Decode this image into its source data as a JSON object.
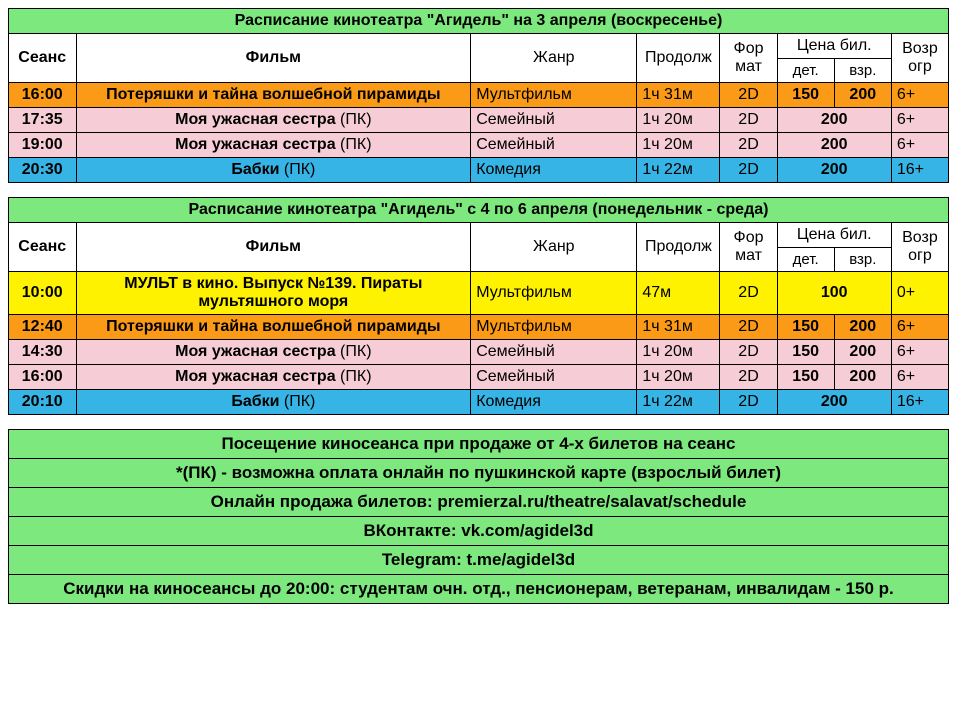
{
  "colors": {
    "green": "#7de87d",
    "orange": "#fb9a17",
    "pink": "#f6cdd6",
    "blue": "#36b4e5",
    "yellow": "#fff200",
    "white": "#ffffff"
  },
  "headers": {
    "time": "Сеанс",
    "film": "Фильм",
    "genre": "Жанр",
    "duration": "Продолж",
    "format": "Фор мат",
    "price": "Цена бил.",
    "price_child": "дет.",
    "price_adult": "взр.",
    "age": "Возр огр"
  },
  "tables": [
    {
      "title": "Расписание кинотеатра \"Агидель\" на 3 апреля (воскресенье)",
      "rows": [
        {
          "time": "16:00",
          "film": "Потеряшки и тайна волшебной пирамиды",
          "suffix": "",
          "genre": "Мультфильм",
          "duration": "1ч 31м",
          "format": "2D",
          "price_child": "150",
          "price_adult": "200",
          "age": "6+",
          "bg": "orange"
        },
        {
          "time": "17:35",
          "film": "Моя ужасная сестра",
          "suffix": "(ПК)",
          "genre": "Семейный",
          "duration": "1ч 20м",
          "format": "2D",
          "price_single": "200",
          "age": "6+",
          "bg": "pink"
        },
        {
          "time": "19:00",
          "film": "Моя ужасная сестра",
          "suffix": "(ПК)",
          "genre": "Семейный",
          "duration": "1ч 20м",
          "format": "2D",
          "price_single": "200",
          "age": "6+",
          "bg": "pink"
        },
        {
          "time": "20:30",
          "film": "Бабки",
          "suffix": "(ПК)",
          "genre": "Комедия",
          "duration": "1ч 22м",
          "format": "2D",
          "price_single": "200",
          "age": "16+",
          "bg": "blue"
        }
      ]
    },
    {
      "title": "Расписание кинотеатра \"Агидель\" с 4 по 6 апреля (понедельник - среда)",
      "rows": [
        {
          "time": "10:00",
          "film": "МУЛЬТ в кино. Выпуск №139. Пираты мультяшного моря",
          "suffix": "",
          "genre": "Мультфильм",
          "duration": "47м",
          "format": "2D",
          "price_single": "100",
          "age": "0+",
          "bg": "yellow"
        },
        {
          "time": "12:40",
          "film": "Потеряшки и тайна волшебной пирамиды",
          "suffix": "",
          "genre": "Мультфильм",
          "duration": "1ч 31м",
          "format": "2D",
          "price_child": "150",
          "price_adult": "200",
          "age": "6+",
          "bg": "orange"
        },
        {
          "time": "14:30",
          "film": "Моя ужасная сестра",
          "suffix": "(ПК)",
          "genre": "Семейный",
          "duration": "1ч 20м",
          "format": "2D",
          "price_child": "150",
          "price_adult": "200",
          "age": "6+",
          "bg": "pink"
        },
        {
          "time": "16:00",
          "film": "Моя ужасная сестра",
          "suffix": "(ПК)",
          "genre": "Семейный",
          "duration": "1ч 20м",
          "format": "2D",
          "price_child": "150",
          "price_adult": "200",
          "age": "6+",
          "bg": "pink"
        },
        {
          "time": "20:10",
          "film": "Бабки",
          "suffix": "(ПК)",
          "genre": "Комедия",
          "duration": "1ч 22м",
          "format": "2D",
          "price_single": "200",
          "age": "16+",
          "bg": "blue"
        }
      ]
    }
  ],
  "info": {
    "lines": [
      "Посещение киносеанса при продаже от 4-х билетов на сеанс",
      "*(ПК) - возможна оплата онлайн по пушкинской карте (взрослый билет)",
      "Онлайн продажа билетов: premierzal.ru/theatre/salavat/schedule",
      "ВКонтакте: vk.com/agidel3d",
      "Telegram: t.me/agidel3d",
      "Скидки на киносеансы до 20:00: студентам очн. отд., пенсионерам, ветеранам, инвалидам - 150 р."
    ]
  }
}
